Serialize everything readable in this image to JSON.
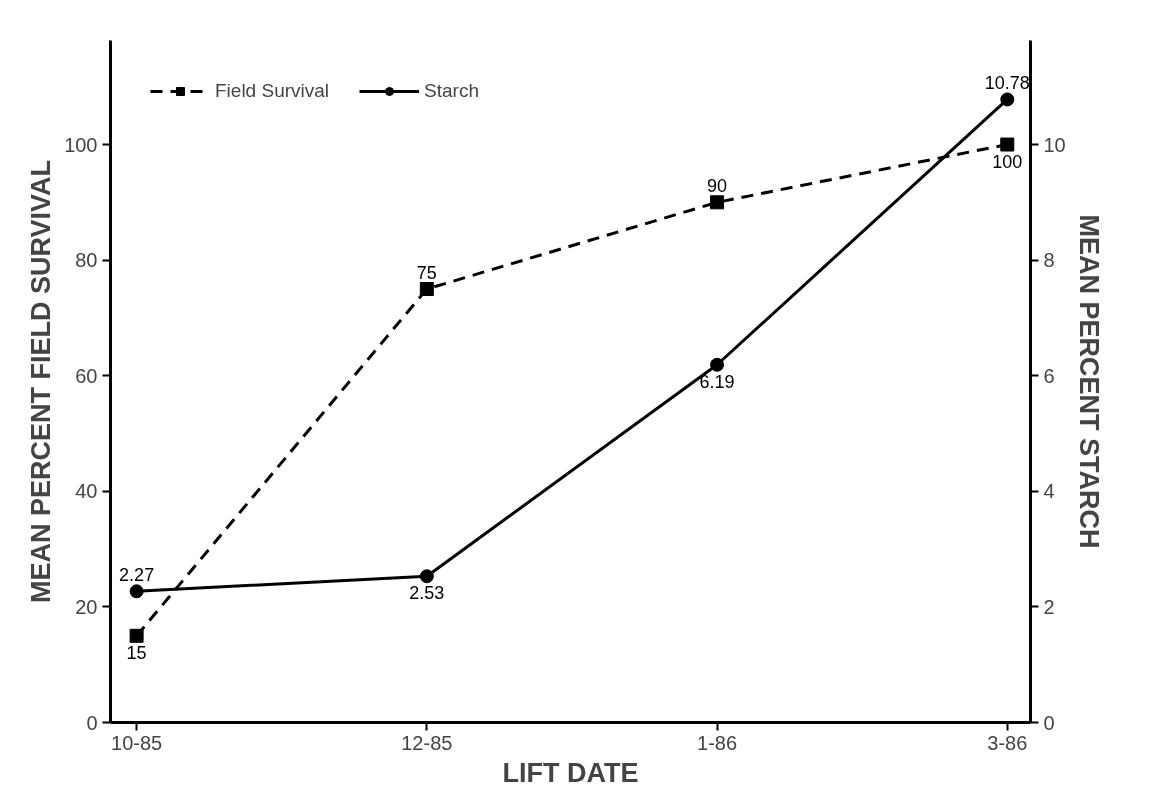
{
  "chart_data": {
    "type": "line",
    "xlabel": "LIFT DATE",
    "ylabel": "MEAN PERCENT FIELD SURVIVAL",
    "y2label": "MEAN PERCENT STARCH",
    "categories": [
      "10-85",
      "12-85",
      "1-86",
      "3-86"
    ],
    "ylim": [
      0,
      118
    ],
    "yticks": [
      0,
      20,
      40,
      60,
      80,
      100
    ],
    "y2lim": [
      0,
      11.8
    ],
    "y2ticks": [
      0,
      2,
      4,
      6,
      8,
      10
    ],
    "series": [
      {
        "name": "Field Survival",
        "color": "#000000",
        "values": [
          15,
          75,
          90,
          100
        ],
        "marker": "square",
        "line_style": "dashed"
      },
      {
        "name": "Starch",
        "color": "#000000",
        "values": [
          2.27,
          2.53,
          6.19,
          10.78
        ],
        "marker": "circle",
        "line_style": "solid",
        "axis": "y2"
      }
    ],
    "data_labels": true,
    "legend": "top left",
    "grid": false
  }
}
